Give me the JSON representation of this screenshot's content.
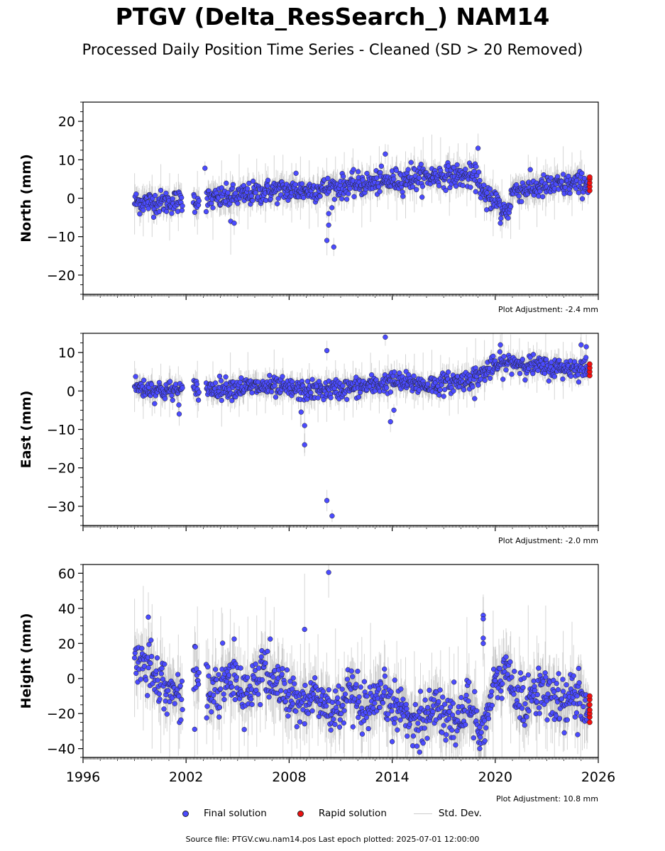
{
  "title": "PTGV (Delta_ResSearch_) NAM14",
  "subtitle": "Processed Daily Position Time Series - Cleaned (SD > 20 Removed)",
  "colors": {
    "final": "#4b4bff",
    "rapid": "#ee1111",
    "std": "#cccccc"
  },
  "legend": {
    "final": "Final solution",
    "rapid": "Rapid solution",
    "std": "Std. Dev."
  },
  "footer": "Source file: PTGV.cwu.nam14.pos  Last epoch plotted: 2025-07-01 12:00:00",
  "chart_data": [
    {
      "type": "scatter",
      "ylabel": "North (mm)",
      "xlim": [
        1996,
        2026
      ],
      "ylim": [
        -25,
        25
      ],
      "yticks": [
        -20,
        -10,
        0,
        10,
        20
      ],
      "adjustment": "Plot Adjustment: -2.4 mm",
      "trend": [
        [
          1999.0,
          -1.0
        ],
        [
          2001.0,
          -1.0
        ],
        [
          2003.0,
          -0.5
        ],
        [
          2005.0,
          0.5
        ],
        [
          2007.0,
          2.0
        ],
        [
          2009.0,
          2.0
        ],
        [
          2011.0,
          3.0
        ],
        [
          2013.0,
          4.0
        ],
        [
          2015.0,
          5.0
        ],
        [
          2017.0,
          6.0
        ],
        [
          2019.0,
          5.5
        ],
        [
          2019.3,
          0.5
        ],
        [
          2020.0,
          0.0
        ],
        [
          2020.4,
          -3.5
        ],
        [
          2020.8,
          -3.0
        ],
        [
          2021.0,
          2.0
        ],
        [
          2023.0,
          3.0
        ],
        [
          2025.5,
          4.0
        ]
      ],
      "scatter": 1.5,
      "outliers": [
        [
          2003.1,
          7.8
        ],
        [
          2004.6,
          -6.0
        ],
        [
          2004.8,
          -6.5
        ],
        [
          2008.4,
          6.5
        ],
        [
          2010.2,
          -11.0
        ],
        [
          2010.3,
          -7.0
        ],
        [
          2010.3,
          -4.0
        ],
        [
          2010.6,
          -12.7
        ],
        [
          2013.6,
          11.5
        ],
        [
          2019.0,
          13.0
        ],
        [
          2019.5,
          -3.0
        ],
        [
          2020.3,
          -6.5
        ],
        [
          2015.1,
          9.3
        ]
      ],
      "rapid": {
        "x": 2025.5,
        "y_values": [
          2.0,
          3.0,
          4.0,
          5.0,
          5.5
        ]
      },
      "x": [],
      "y": []
    },
    {
      "type": "scatter",
      "ylabel": "East (mm)",
      "xlim": [
        1996,
        2026
      ],
      "ylim": [
        -35,
        15
      ],
      "yticks": [
        -30,
        -20,
        -10,
        0,
        10
      ],
      "adjustment": "Plot Adjustment: -2.0 mm",
      "trend": [
        [
          1999.0,
          1.0
        ],
        [
          2001.0,
          0.0
        ],
        [
          2003.0,
          0.5
        ],
        [
          2005.0,
          1.0
        ],
        [
          2007.0,
          1.0
        ],
        [
          2009.0,
          0.0
        ],
        [
          2011.0,
          0.5
        ],
        [
          2013.0,
          1.5
        ],
        [
          2014.0,
          2.5
        ],
        [
          2016.0,
          1.5
        ],
        [
          2018.0,
          2.5
        ],
        [
          2019.0,
          4.0
        ],
        [
          2020.0,
          6.5
        ],
        [
          2021.0,
          7.5
        ],
        [
          2023.0,
          6.0
        ],
        [
          2025.5,
          6.0
        ]
      ],
      "scatter": 1.3,
      "outliers": [
        [
          2001.6,
          -6.0
        ],
        [
          2008.9,
          -9.0
        ],
        [
          2008.9,
          -14.0
        ],
        [
          2010.2,
          10.5
        ],
        [
          2010.2,
          -28.5
        ],
        [
          2010.5,
          -32.5
        ],
        [
          2013.6,
          14.0
        ],
        [
          2013.9,
          -8.0
        ],
        [
          2014.1,
          -5.0
        ],
        [
          2008.7,
          -5.5
        ],
        [
          2018.8,
          -2.0
        ],
        [
          2020.3,
          12.0
        ],
        [
          2025.3,
          11.5
        ],
        [
          2025.0,
          12.0
        ]
      ],
      "rapid": {
        "x": 2025.5,
        "y_values": [
          4.0,
          5.0,
          6.0,
          7.0
        ]
      },
      "x": [],
      "y": []
    },
    {
      "type": "scatter",
      "ylabel": "Height (mm)",
      "xlim": [
        1996,
        2026
      ],
      "ylim": [
        -45,
        65
      ],
      "yticks": [
        -40,
        -20,
        0,
        20,
        40,
        60
      ],
      "xticks": [
        1996,
        2002,
        2008,
        2014,
        2020,
        2026
      ],
      "adjustment": "Plot Adjustment: 10.8 mm",
      "trend": [
        [
          1999.0,
          3.0
        ],
        [
          1999.5,
          12.0
        ],
        [
          2000.5,
          0.0
        ],
        [
          2001.5,
          -12.0
        ],
        [
          2002.5,
          5.0
        ],
        [
          2003.5,
          -10.0
        ],
        [
          2004.5,
          0.0
        ],
        [
          2005.5,
          -8.0
        ],
        [
          2006.5,
          3.0
        ],
        [
          2007.5,
          -5.0
        ],
        [
          2008.5,
          -15.0
        ],
        [
          2009.5,
          -10.0
        ],
        [
          2010.5,
          -20.0
        ],
        [
          2011.5,
          -10.0
        ],
        [
          2012.5,
          -20.0
        ],
        [
          2013.5,
          -12.0
        ],
        [
          2014.5,
          -18.0
        ],
        [
          2015.5,
          -25.0
        ],
        [
          2016.5,
          -15.0
        ],
        [
          2017.5,
          -25.0
        ],
        [
          2018.5,
          -15.0
        ],
        [
          2019.2,
          -30.0
        ],
        [
          2020.0,
          -5.0
        ],
        [
          2020.6,
          5.0
        ],
        [
          2021.5,
          -15.0
        ],
        [
          2022.5,
          -5.0
        ],
        [
          2023.5,
          -15.0
        ],
        [
          2024.5,
          -10.0
        ],
        [
          2025.5,
          -15.0
        ]
      ],
      "scatter": 7,
      "outliers": [
        [
          1999.8,
          35.0
        ],
        [
          2008.9,
          28.0
        ],
        [
          2010.3,
          60.5
        ],
        [
          2019.3,
          36.0
        ],
        [
          2019.3,
          34.0
        ],
        [
          2019.3,
          23.0
        ],
        [
          2019.3,
          20.0
        ],
        [
          2002.5,
          -29.0
        ],
        [
          2015.6,
          -42.0
        ],
        [
          2019.1,
          -40.0
        ],
        [
          2024.8,
          -32.0
        ],
        [
          2006.9,
          22.5
        ],
        [
          2004.8,
          22.5
        ]
      ],
      "rapid": {
        "x": 2025.5,
        "y_values": [
          -25.0,
          -22.0,
          -20.0,
          -18.0,
          -15.0,
          -12.0,
          -10.0
        ]
      },
      "x": [],
      "y": []
    }
  ]
}
